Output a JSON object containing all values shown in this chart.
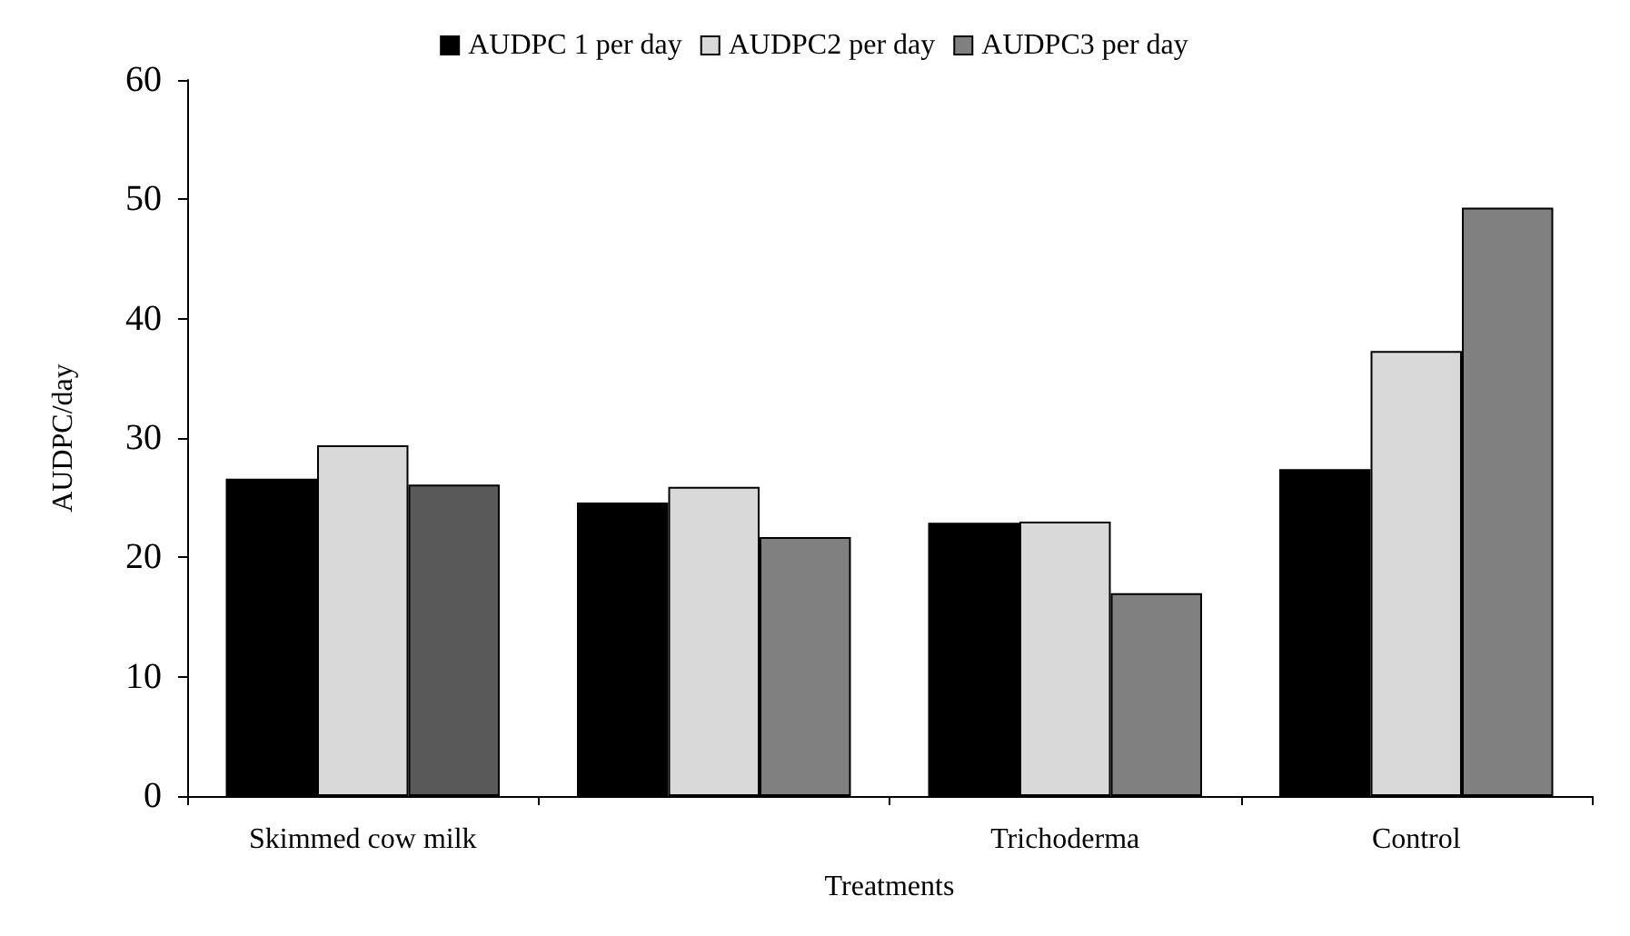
{
  "chart_data": {
    "type": "bar",
    "xlabel": "Treatments",
    "ylabel": "AUDPC/day",
    "categories": [
      "Skimmed cow milk",
      null,
      "Trichoderma",
      "Control"
    ],
    "series": [
      {
        "name": "AUDPC 1 per day",
        "color": "#000000",
        "values": [
          26.6,
          24.6,
          22.9,
          27.4
        ]
      },
      {
        "name": "AUDPC2 per day",
        "color": "#d9d9d9",
        "values": [
          29.4,
          25.9,
          23.0,
          37.3
        ]
      },
      {
        "name": "AUDPC3 per day",
        "color": "#808080",
        "colors": [
          "#595959",
          "#808080",
          "#808080",
          "#808080"
        ],
        "values": [
          26.1,
          21.7,
          17.0,
          49.3
        ]
      }
    ],
    "ylim": [
      0,
      60
    ],
    "yticks": [
      0,
      10,
      20,
      30,
      40,
      50,
      60
    ],
    "grid": false,
    "legend": "top"
  }
}
